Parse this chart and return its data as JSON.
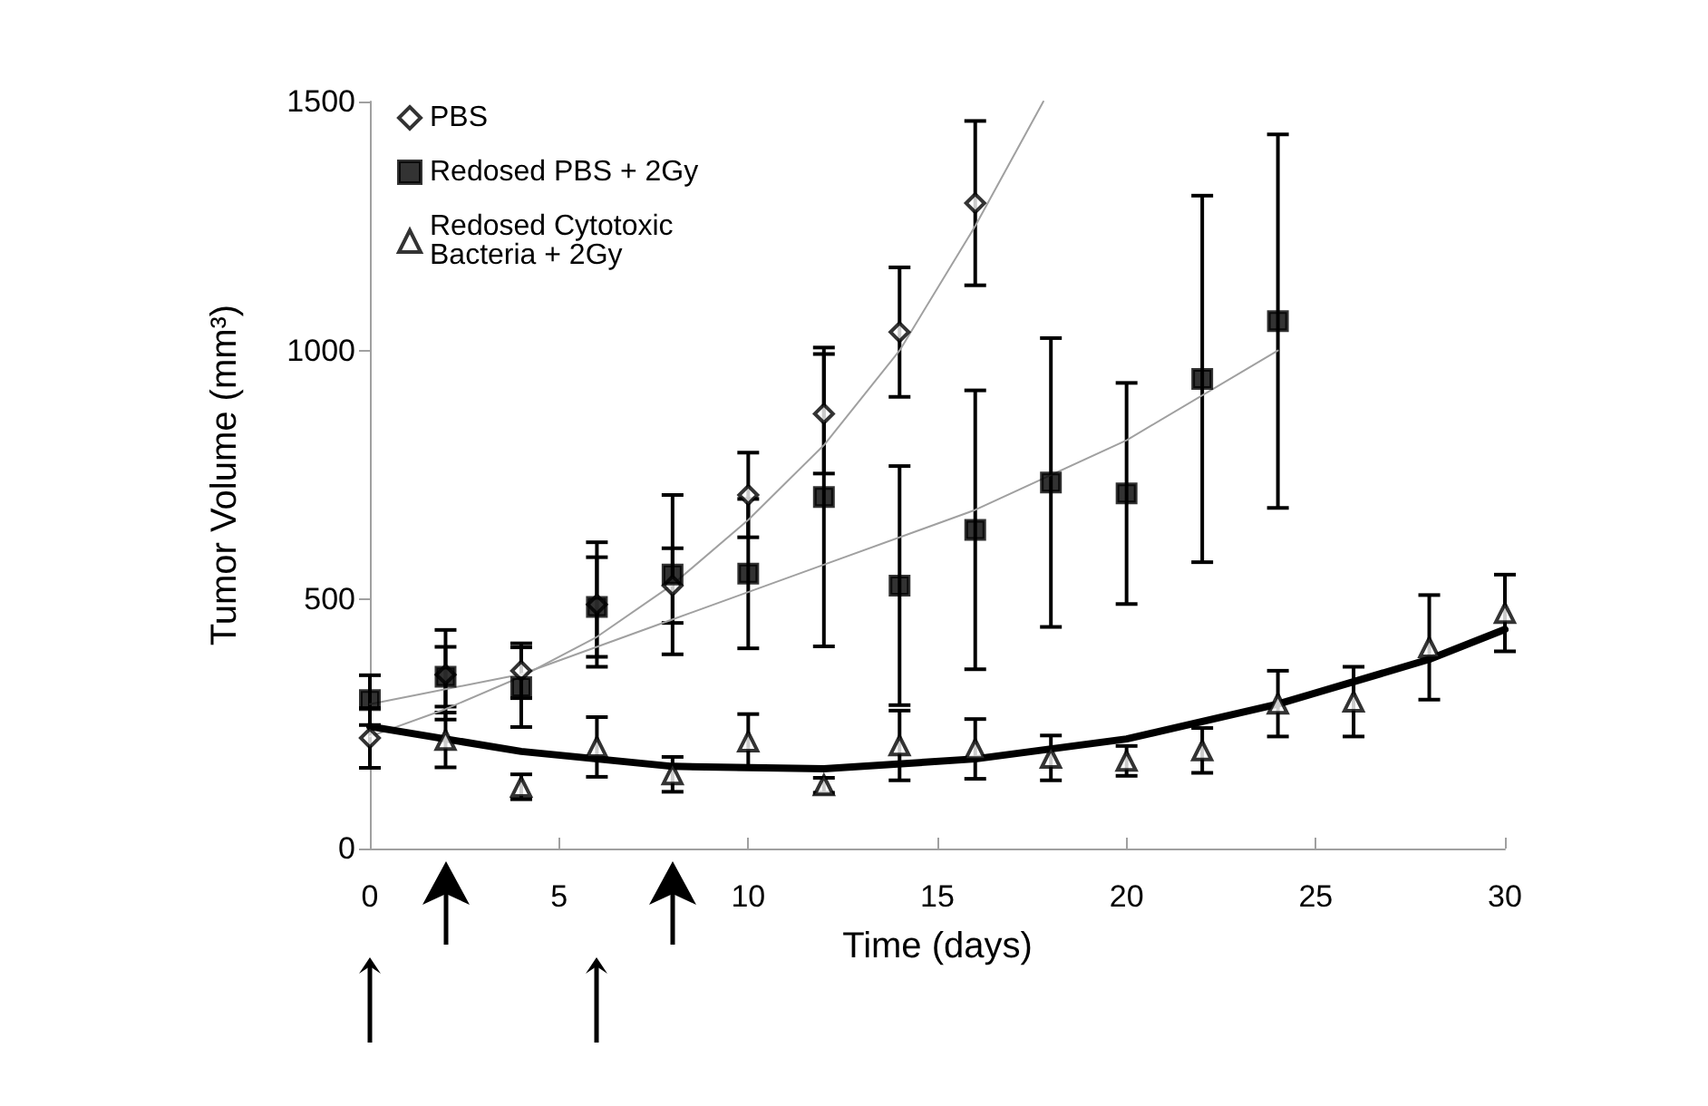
{
  "chart_data": {
    "type": "scatter",
    "xlabel": "Time (days)",
    "ylabel": "Tumor Volume (mm³)",
    "xlim": [
      0,
      30
    ],
    "xticks": [
      0,
      5,
      10,
      15,
      20,
      25,
      30
    ],
    "ylim": [
      0,
      1500
    ],
    "yticks": [
      0,
      500,
      1000,
      1500
    ],
    "grid": false,
    "legend": "top left",
    "series": [
      {
        "name": "PBS",
        "color": "#000000",
        "marker": "diamond",
        "x": [
          0,
          2,
          4,
          6,
          8,
          10,
          12,
          14,
          16
        ],
        "values": [
          222,
          349,
          357,
          490,
          528,
          710,
          873,
          1037,
          1296
        ],
        "errors": [
          60,
          90,
          55,
          125,
          75,
          85,
          120,
          130,
          165
        ]
      },
      {
        "name": "Redosed PBS + 2Gy",
        "color": "#000000",
        "marker": "square",
        "x": [
          0,
          2,
          4,
          6,
          8,
          10,
          12,
          14,
          16,
          18,
          20,
          22,
          24
        ],
        "values": [
          298,
          345,
          324,
          485,
          550,
          552,
          706,
          528,
          640,
          735,
          713,
          943,
          1059
        ],
        "errors": [
          50,
          60,
          80,
          100,
          160,
          150,
          300,
          240,
          280,
          290,
          222,
          368,
          375
        ]
      },
      {
        "name": "Redosed Cytotoxic Bacteria + 2Gy",
        "color": "#000000",
        "marker": "triangle",
        "x": [
          2,
          4,
          6,
          8,
          10,
          12,
          14,
          16,
          18,
          20,
          22,
          24,
          26,
          28,
          30
        ],
        "values": [
          218,
          124,
          204,
          149,
          215,
          127,
          207,
          200,
          182,
          176,
          197,
          291,
          295,
          404,
          473
        ],
        "errors": [
          55,
          25,
          60,
          35,
          55,
          15,
          70,
          60,
          45,
          30,
          45,
          66,
          70,
          105,
          77
        ]
      },
      {
        "type": "line",
        "color": "#a0a0a0",
        "x": [
          0,
          2,
          4,
          6,
          8,
          10,
          12,
          14,
          16,
          17.8
        ],
        "values": [
          225,
          280,
          345,
          425,
          530,
          660,
          810,
          1000,
          1250,
          1500
        ]
      },
      {
        "type": "line",
        "color": "#a0a0a0",
        "x": [
          0,
          4,
          8,
          12,
          16,
          20,
          24
        ],
        "values": [
          290,
          350,
          460,
          570,
          680,
          820,
          1000
        ]
      },
      {
        "type": "line",
        "color": "#000000",
        "x": [
          0,
          4,
          8,
          12,
          16,
          20,
          24,
          28,
          30
        ],
        "values": [
          245,
          195,
          165,
          160,
          180,
          220,
          290,
          380,
          440
        ]
      }
    ]
  }
}
